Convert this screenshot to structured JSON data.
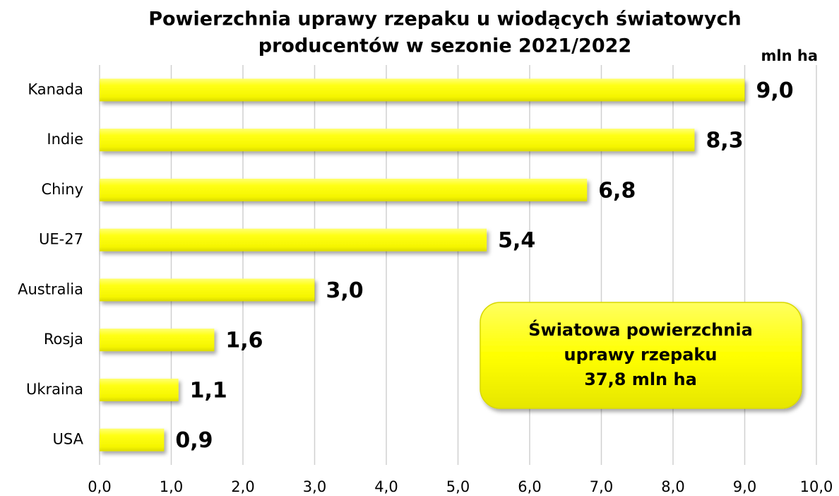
{
  "chart_data": {
    "type": "bar",
    "orientation": "horizontal",
    "title": [
      "Powierzchnia uprawy rzepaku u wiodących światowych",
      "producentów w sezonie 2021/2022"
    ],
    "unit_label": "mln ha",
    "categories": [
      "Kanada",
      "Indie",
      "Chiny",
      "UE-27",
      "Australia",
      "Rosja",
      "Ukraina",
      "USA"
    ],
    "values": [
      9.0,
      8.3,
      6.8,
      5.4,
      3.0,
      1.6,
      1.1,
      0.9
    ],
    "value_labels": [
      "9,0",
      "8,3",
      "6,8",
      "5,4",
      "3,0",
      "1,6",
      "1,1",
      "0,9"
    ],
    "color": "#ffff00",
    "xlim": [
      0,
      10
    ],
    "xticks": [
      {
        "value": 0,
        "label": "0,0"
      },
      {
        "value": 1,
        "label": "1,0"
      },
      {
        "value": 2,
        "label": "2,0"
      },
      {
        "value": 3,
        "label": "3,0"
      },
      {
        "value": 4,
        "label": "4,0"
      },
      {
        "value": 5,
        "label": "5,0"
      },
      {
        "value": 6,
        "label": "6,0"
      },
      {
        "value": 7,
        "label": "7,0"
      },
      {
        "value": 8,
        "label": "8,0"
      },
      {
        "value": 9,
        "label": "9,0"
      },
      {
        "value": 10,
        "label": "10,0"
      }
    ],
    "grid": true,
    "annotation": [
      "Światowa powierzchnia",
      "uprawy rzepaku",
      "37,8 mln ha"
    ]
  }
}
